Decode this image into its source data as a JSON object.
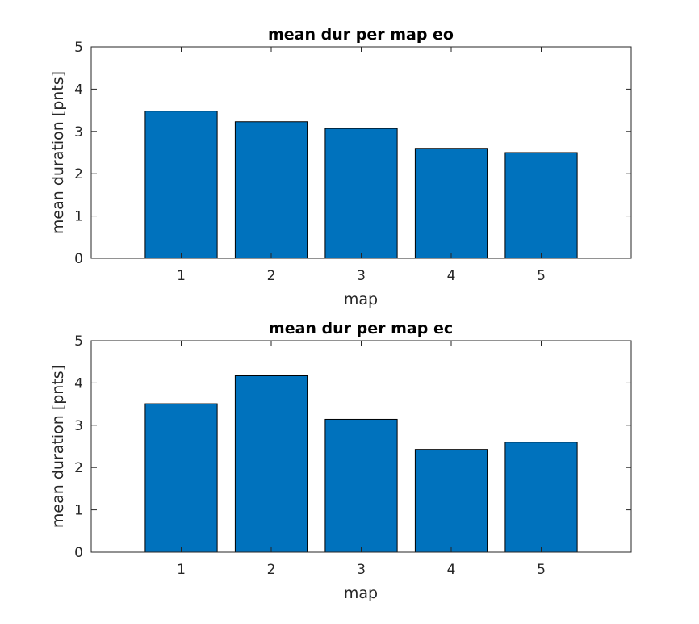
{
  "chart_data": [
    {
      "type": "bar",
      "title": "mean dur per map eo",
      "xlabel": "map",
      "ylabel": "mean duration [pnts]",
      "categories": [
        "1",
        "2",
        "3",
        "4",
        "5"
      ],
      "values": [
        3.48,
        3.23,
        3.07,
        2.6,
        2.5
      ],
      "xlim": [
        0,
        6
      ],
      "ylim": [
        0,
        5
      ],
      "yticks": [
        "0",
        "1",
        "2",
        "3",
        "4",
        "5"
      ],
      "bar_color": "#0072BD",
      "grid": false,
      "legend": "none"
    },
    {
      "type": "bar",
      "title": "mean dur per map ec",
      "xlabel": "map",
      "ylabel": "mean duration [pnts]",
      "categories": [
        "1",
        "2",
        "3",
        "4",
        "5"
      ],
      "values": [
        3.51,
        4.17,
        3.14,
        2.43,
        2.6
      ],
      "xlim": [
        0,
        6
      ],
      "ylim": [
        0,
        5
      ],
      "yticks": [
        "0",
        "1",
        "2",
        "3",
        "4",
        "5"
      ],
      "bar_color": "#0072BD",
      "grid": false,
      "legend": "none"
    }
  ]
}
